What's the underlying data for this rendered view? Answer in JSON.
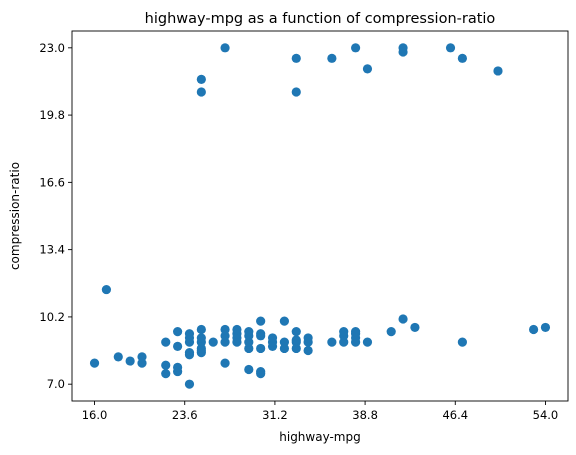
{
  "chart_data": {
    "type": "scatter",
    "title": "highway-mpg as a function of compression-ratio",
    "xlabel": "highway-mpg",
    "ylabel": "compression-ratio",
    "xlim": [
      14.1,
      55.9
    ],
    "ylim": [
      6.2,
      23.8
    ],
    "x_ticks": [
      "16.0",
      "23.6",
      "31.2",
      "38.8",
      "46.4",
      "54.0"
    ],
    "y_ticks": [
      "7.0",
      "10.2",
      "13.4",
      "16.6",
      "19.8",
      "23.0"
    ],
    "grid": false,
    "marker_color": "#1f77b4",
    "points": [
      {
        "x": 16,
        "y": 8.0
      },
      {
        "x": 17,
        "y": 11.5
      },
      {
        "x": 18,
        "y": 8.3
      },
      {
        "x": 19,
        "y": 8.1
      },
      {
        "x": 20,
        "y": 8.0
      },
      {
        "x": 20,
        "y": 8.3
      },
      {
        "x": 22,
        "y": 7.5
      },
      {
        "x": 22,
        "y": 7.9
      },
      {
        "x": 22,
        "y": 9.0
      },
      {
        "x": 23,
        "y": 7.6
      },
      {
        "x": 23,
        "y": 7.8
      },
      {
        "x": 23,
        "y": 8.8
      },
      {
        "x": 23,
        "y": 9.5
      },
      {
        "x": 24,
        "y": 7.0
      },
      {
        "x": 24,
        "y": 8.4
      },
      {
        "x": 24,
        "y": 8.5
      },
      {
        "x": 24,
        "y": 9.0
      },
      {
        "x": 24,
        "y": 9.2
      },
      {
        "x": 24,
        "y": 9.4
      },
      {
        "x": 25,
        "y": 8.5
      },
      {
        "x": 25,
        "y": 8.6
      },
      {
        "x": 25,
        "y": 8.7
      },
      {
        "x": 25,
        "y": 9.0
      },
      {
        "x": 25,
        "y": 9.2
      },
      {
        "x": 25,
        "y": 9.6
      },
      {
        "x": 25,
        "y": 20.9
      },
      {
        "x": 25,
        "y": 21.5
      },
      {
        "x": 26,
        "y": 9.0
      },
      {
        "x": 27,
        "y": 8.0
      },
      {
        "x": 27,
        "y": 9.0
      },
      {
        "x": 27,
        "y": 9.3
      },
      {
        "x": 27,
        "y": 9.6
      },
      {
        "x": 27,
        "y": 23.0
      },
      {
        "x": 28,
        "y": 9.0
      },
      {
        "x": 28,
        "y": 9.2
      },
      {
        "x": 28,
        "y": 9.4
      },
      {
        "x": 28,
        "y": 9.6
      },
      {
        "x": 29,
        "y": 7.7
      },
      {
        "x": 29,
        "y": 8.7
      },
      {
        "x": 29,
        "y": 9.0
      },
      {
        "x": 29,
        "y": 9.3
      },
      {
        "x": 29,
        "y": 9.5
      },
      {
        "x": 30,
        "y": 7.5
      },
      {
        "x": 30,
        "y": 7.6
      },
      {
        "x": 30,
        "y": 8.7
      },
      {
        "x": 30,
        "y": 9.3
      },
      {
        "x": 30,
        "y": 9.4
      },
      {
        "x": 30,
        "y": 10.0
      },
      {
        "x": 31,
        "y": 8.8
      },
      {
        "x": 31,
        "y": 9.0
      },
      {
        "x": 31,
        "y": 9.2
      },
      {
        "x": 32,
        "y": 8.7
      },
      {
        "x": 32,
        "y": 9.0
      },
      {
        "x": 32,
        "y": 10.0
      },
      {
        "x": 33,
        "y": 8.7
      },
      {
        "x": 33,
        "y": 9.0
      },
      {
        "x": 33,
        "y": 9.1
      },
      {
        "x": 33,
        "y": 9.5
      },
      {
        "x": 33,
        "y": 20.9
      },
      {
        "x": 33,
        "y": 22.5
      },
      {
        "x": 34,
        "y": 8.6
      },
      {
        "x": 34,
        "y": 9.0
      },
      {
        "x": 34,
        "y": 9.2
      },
      {
        "x": 36,
        "y": 9.0
      },
      {
        "x": 36,
        "y": 22.5
      },
      {
        "x": 37,
        "y": 9.0
      },
      {
        "x": 37,
        "y": 9.3
      },
      {
        "x": 37,
        "y": 9.5
      },
      {
        "x": 38,
        "y": 9.0
      },
      {
        "x": 38,
        "y": 9.2
      },
      {
        "x": 38,
        "y": 9.4
      },
      {
        "x": 38,
        "y": 9.5
      },
      {
        "x": 38,
        "y": 23.0
      },
      {
        "x": 39,
        "y": 9.0
      },
      {
        "x": 39,
        "y": 22.0
      },
      {
        "x": 41,
        "y": 9.5
      },
      {
        "x": 42,
        "y": 10.1
      },
      {
        "x": 42,
        "y": 22.8
      },
      {
        "x": 42,
        "y": 23.0
      },
      {
        "x": 43,
        "y": 9.7
      },
      {
        "x": 46,
        "y": 23.0
      },
      {
        "x": 47,
        "y": 9.0
      },
      {
        "x": 47,
        "y": 22.5
      },
      {
        "x": 50,
        "y": 21.9
      },
      {
        "x": 53,
        "y": 9.6
      },
      {
        "x": 54,
        "y": 9.7
      }
    ]
  }
}
